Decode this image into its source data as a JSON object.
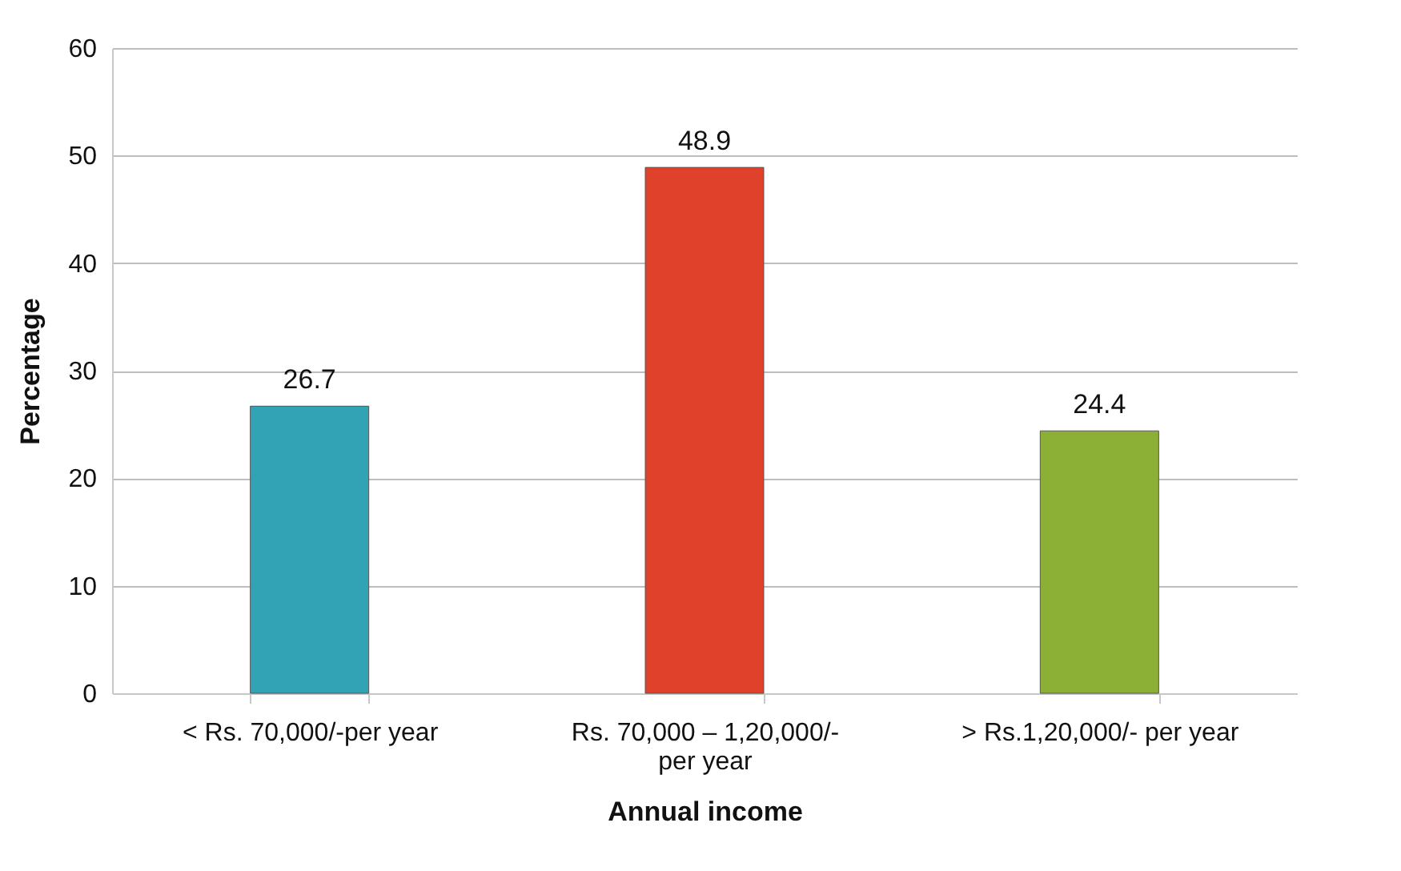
{
  "chart_data": {
    "type": "bar",
    "xlabel": "Annual income",
    "ylabel": "Percentage",
    "categories": [
      "< Rs. 70,000/-per year",
      "Rs. 70,000 – 1,20,000/- per year",
      "> Rs.1,20,000/- per year"
    ],
    "values": [
      26.7,
      48.9,
      24.4
    ],
    "colors": [
      "#31a3b5",
      "#e0412a",
      "#8cb035"
    ],
    "ylim": [
      0,
      60
    ],
    "yticks": [
      0,
      10,
      20,
      30,
      40,
      50,
      60
    ],
    "grid": "y",
    "data_labels": true
  }
}
